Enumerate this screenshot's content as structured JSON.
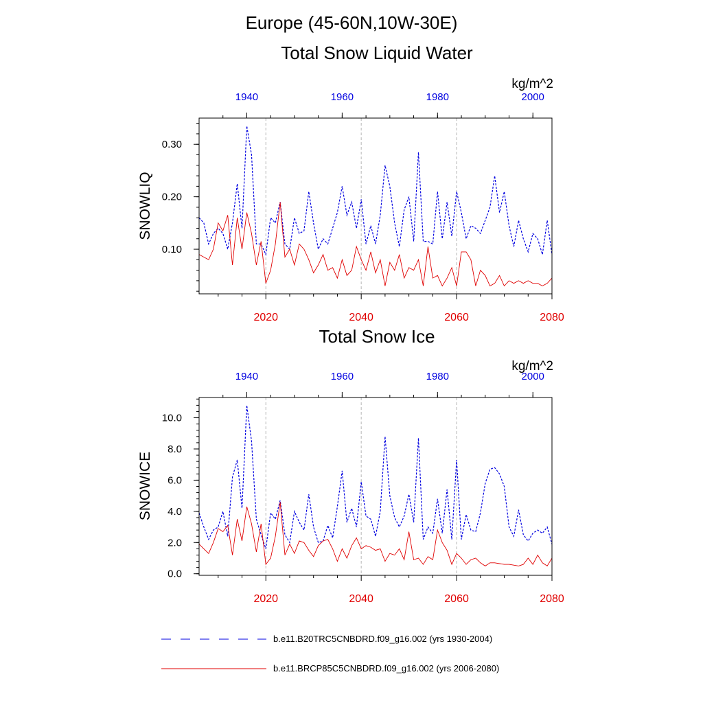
{
  "header": {
    "title": "Europe (45-60N,10W-30E)"
  },
  "legend": {
    "entries": [
      {
        "label": "b.e11.B20TRC5CNBDRD.f09_g16.002 (yrs 1930-2004)",
        "color": "#0000e0",
        "style": "dashed"
      },
      {
        "label": "b.e11.BRCP85C5CNBDRD.f09_g16.002 (yrs 2006-2080)",
        "color": "#e00000",
        "style": "solid"
      }
    ]
  },
  "chart_data": [
    {
      "type": "line",
      "title": "Total Snow Liquid Water",
      "units": "kg/m^2",
      "ylabel": "SNOWLIQ",
      "ylim": [
        0.015,
        0.35
      ],
      "yticks": [
        0.1,
        0.2,
        0.3
      ],
      "yticklabels": [
        "0.10",
        "0.20",
        "0.30"
      ],
      "x_bottom": {
        "lim": [
          2006,
          2080
        ],
        "ticks": [
          2020,
          2040,
          2060,
          2080
        ],
        "color": "#e00000"
      },
      "x_top": {
        "lim": [
          1930,
          2004
        ],
        "ticks": [
          1940,
          1960,
          1980,
          2000
        ],
        "color": "#0000e0"
      },
      "gridlines_x": [
        2020,
        2040,
        2060
      ],
      "series": [
        {
          "name": "b.e11.B20TRC5CNBDRD.f09_g16.002 (yrs 1930-2004)",
          "axis": "top",
          "color": "#0000e0",
          "style": "dashed",
          "x_start": 1930,
          "values": [
            0.16,
            0.15,
            0.11,
            0.13,
            0.14,
            0.13,
            0.1,
            0.15,
            0.225,
            0.14,
            0.335,
            0.28,
            0.11,
            0.11,
            0.09,
            0.16,
            0.15,
            0.19,
            0.11,
            0.1,
            0.16,
            0.13,
            0.135,
            0.21,
            0.15,
            0.1,
            0.12,
            0.11,
            0.14,
            0.17,
            0.22,
            0.165,
            0.19,
            0.14,
            0.195,
            0.11,
            0.145,
            0.11,
            0.165,
            0.26,
            0.22,
            0.15,
            0.105,
            0.175,
            0.2,
            0.115,
            0.285,
            0.115,
            0.115,
            0.11,
            0.21,
            0.12,
            0.19,
            0.125,
            0.21,
            0.17,
            0.12,
            0.145,
            0.14,
            0.13,
            0.155,
            0.18,
            0.24,
            0.17,
            0.21,
            0.145,
            0.105,
            0.155,
            0.12,
            0.095,
            0.13,
            0.12,
            0.09,
            0.155,
            0.09
          ]
        },
        {
          "name": "b.e11.BRCP85C5CNBDRD.f09_g16.002 (yrs 2006-2080)",
          "axis": "bottom",
          "color": "#e00000",
          "style": "solid",
          "x_start": 2006,
          "values": [
            0.09,
            0.085,
            0.08,
            0.1,
            0.15,
            0.135,
            0.165,
            0.07,
            0.16,
            0.1,
            0.17,
            0.13,
            0.07,
            0.115,
            0.035,
            0.06,
            0.11,
            0.19,
            0.085,
            0.1,
            0.07,
            0.11,
            0.1,
            0.08,
            0.055,
            0.07,
            0.09,
            0.06,
            0.065,
            0.045,
            0.08,
            0.05,
            0.06,
            0.105,
            0.08,
            0.06,
            0.095,
            0.055,
            0.08,
            0.03,
            0.075,
            0.06,
            0.09,
            0.045,
            0.065,
            0.06,
            0.08,
            0.03,
            0.105,
            0.045,
            0.05,
            0.03,
            0.045,
            0.065,
            0.03,
            0.095,
            0.095,
            0.08,
            0.03,
            0.06,
            0.05,
            0.03,
            0.035,
            0.05,
            0.03,
            0.04,
            0.035,
            0.04,
            0.035,
            0.04,
            0.035,
            0.035,
            0.03,
            0.035,
            0.045
          ]
        }
      ]
    },
    {
      "type": "line",
      "title": "Total Snow Ice",
      "units": "kg/m^2",
      "ylabel": "SNOWICE",
      "ylim": [
        -0.1,
        11.3
      ],
      "yticks": [
        0.0,
        2.0,
        4.0,
        6.0,
        8.0,
        10.0
      ],
      "yticklabels": [
        "0.0",
        "2.0",
        "4.0",
        "6.0",
        "8.0",
        "10.0"
      ],
      "x_bottom": {
        "lim": [
          2006,
          2080
        ],
        "ticks": [
          2020,
          2040,
          2060,
          2080
        ],
        "color": "#e00000"
      },
      "x_top": {
        "lim": [
          1930,
          2004
        ],
        "ticks": [
          1940,
          1960,
          1980,
          2000
        ],
        "color": "#0000e0"
      },
      "gridlines_x": [
        2020,
        2040,
        2060
      ],
      "series": [
        {
          "name": "b.e11.B20TRC5CNBDRD.f09_g16.002 (yrs 1930-2004)",
          "axis": "top",
          "color": "#0000e0",
          "style": "dashed",
          "x_start": 1930,
          "values": [
            3.9,
            3.0,
            2.2,
            2.8,
            3.0,
            4.0,
            2.4,
            6.2,
            7.3,
            4.2,
            10.8,
            8.5,
            3.5,
            2.5,
            1.6,
            3.9,
            3.5,
            4.7,
            2.5,
            2.0,
            4.0,
            3.3,
            2.8,
            5.1,
            3.0,
            2.0,
            2.1,
            3.1,
            2.3,
            4.3,
            6.6,
            3.3,
            4.2,
            3.0,
            5.9,
            3.7,
            3.5,
            2.4,
            4.0,
            8.8,
            5.0,
            3.6,
            3.0,
            3.7,
            5.1,
            3.3,
            8.7,
            2.2,
            3.0,
            2.6,
            4.8,
            2.6,
            5.4,
            2.2,
            7.3,
            2.2,
            3.8,
            2.8,
            2.7,
            3.9,
            5.8,
            6.7,
            6.8,
            6.4,
            5.6,
            3.0,
            2.4,
            4.1,
            2.5,
            2.1,
            2.6,
            2.8,
            2.6,
            3.0,
            1.9
          ]
        },
        {
          "name": "b.e11.BRCP85C5CNBDRD.f09_g16.002 (yrs 2006-2080)",
          "axis": "bottom",
          "color": "#e00000",
          "style": "solid",
          "x_start": 2006,
          "values": [
            1.9,
            1.6,
            1.3,
            2.0,
            2.9,
            2.7,
            3.1,
            1.2,
            3.5,
            2.1,
            4.3,
            3.2,
            1.4,
            3.2,
            0.6,
            1.0,
            2.4,
            4.6,
            1.2,
            1.9,
            1.3,
            2.1,
            2.0,
            1.5,
            1.1,
            1.8,
            2.1,
            2.2,
            1.6,
            0.8,
            1.6,
            1.0,
            1.8,
            2.3,
            1.6,
            1.8,
            1.7,
            1.5,
            1.6,
            0.8,
            1.3,
            1.2,
            1.6,
            0.9,
            2.7,
            0.9,
            1.0,
            0.6,
            1.1,
            0.9,
            2.8,
            2.0,
            1.5,
            0.6,
            1.3,
            1.0,
            0.6,
            0.9,
            1.0,
            0.7,
            0.5,
            0.7,
            0.7,
            0.65,
            0.6,
            0.6,
            0.55,
            0.5,
            0.6,
            1.0,
            0.6,
            1.2,
            0.7,
            0.5,
            1.0
          ]
        }
      ]
    }
  ]
}
